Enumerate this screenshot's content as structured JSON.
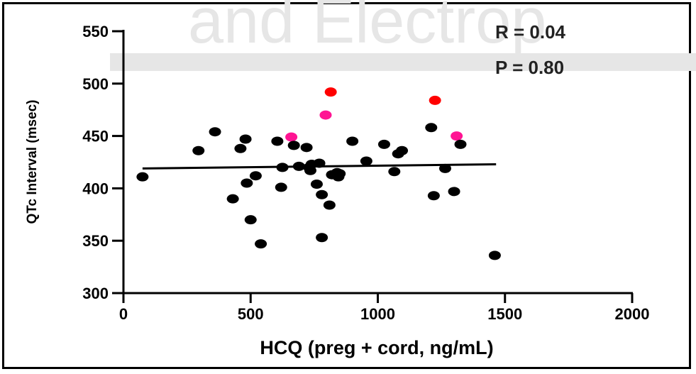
{
  "watermark": "and Electrop",
  "chart_data": {
    "type": "scatter",
    "xlabel": "HCQ (preg + cord, ng/mL)",
    "ylabel": "QTc Interval (msec)",
    "xlim": [
      0,
      2000
    ],
    "ylim": [
      300,
      550
    ],
    "xticks": [
      0,
      500,
      1000,
      1500,
      2000
    ],
    "yticks": [
      300,
      350,
      400,
      450,
      500,
      550
    ],
    "annotations": [
      "R = 0.04",
      "P = 0.80"
    ],
    "colors": {
      "black": "#000000",
      "red": "#ff0000",
      "pink": "#ff1493"
    },
    "points": [
      {
        "x": 75,
        "y": 411,
        "c": "black"
      },
      {
        "x": 295,
        "y": 436,
        "c": "black"
      },
      {
        "x": 360,
        "y": 454,
        "c": "black"
      },
      {
        "x": 430,
        "y": 390,
        "c": "black"
      },
      {
        "x": 460,
        "y": 438,
        "c": "black"
      },
      {
        "x": 480,
        "y": 447,
        "c": "black"
      },
      {
        "x": 485,
        "y": 405,
        "c": "black"
      },
      {
        "x": 500,
        "y": 370,
        "c": "black"
      },
      {
        "x": 520,
        "y": 412,
        "c": "black"
      },
      {
        "x": 540,
        "y": 347,
        "c": "black"
      },
      {
        "x": 605,
        "y": 445,
        "c": "black"
      },
      {
        "x": 620,
        "y": 401,
        "c": "black"
      },
      {
        "x": 625,
        "y": 420,
        "c": "black"
      },
      {
        "x": 660,
        "y": 449,
        "c": "pink"
      },
      {
        "x": 670,
        "y": 441,
        "c": "black"
      },
      {
        "x": 690,
        "y": 421,
        "c": "black"
      },
      {
        "x": 720,
        "y": 439,
        "c": "black"
      },
      {
        "x": 730,
        "y": 420,
        "c": "black"
      },
      {
        "x": 740,
        "y": 423,
        "c": "black"
      },
      {
        "x": 735,
        "y": 417,
        "c": "black"
      },
      {
        "x": 760,
        "y": 404,
        "c": "black"
      },
      {
        "x": 770,
        "y": 424,
        "c": "black"
      },
      {
        "x": 780,
        "y": 394,
        "c": "black"
      },
      {
        "x": 780,
        "y": 353,
        "c": "black"
      },
      {
        "x": 795,
        "y": 470,
        "c": "pink"
      },
      {
        "x": 810,
        "y": 384,
        "c": "black"
      },
      {
        "x": 815,
        "y": 492,
        "c": "red"
      },
      {
        "x": 820,
        "y": 413,
        "c": "black"
      },
      {
        "x": 840,
        "y": 415,
        "c": "black"
      },
      {
        "x": 845,
        "y": 411,
        "c": "black"
      },
      {
        "x": 850,
        "y": 414,
        "c": "black"
      },
      {
        "x": 900,
        "y": 445,
        "c": "black"
      },
      {
        "x": 955,
        "y": 426,
        "c": "black"
      },
      {
        "x": 1025,
        "y": 442,
        "c": "black"
      },
      {
        "x": 1065,
        "y": 416,
        "c": "black"
      },
      {
        "x": 1080,
        "y": 433,
        "c": "black"
      },
      {
        "x": 1095,
        "y": 436,
        "c": "black"
      },
      {
        "x": 1210,
        "y": 458,
        "c": "black"
      },
      {
        "x": 1220,
        "y": 393,
        "c": "black"
      },
      {
        "x": 1225,
        "y": 484,
        "c": "red"
      },
      {
        "x": 1265,
        "y": 419,
        "c": "black"
      },
      {
        "x": 1300,
        "y": 397,
        "c": "black"
      },
      {
        "x": 1310,
        "y": 450,
        "c": "pink"
      },
      {
        "x": 1325,
        "y": 442,
        "c": "black"
      },
      {
        "x": 1460,
        "y": 336,
        "c": "black"
      }
    ],
    "regression_line": {
      "x": [
        75,
        1465
      ],
      "y": [
        419,
        423
      ]
    }
  }
}
